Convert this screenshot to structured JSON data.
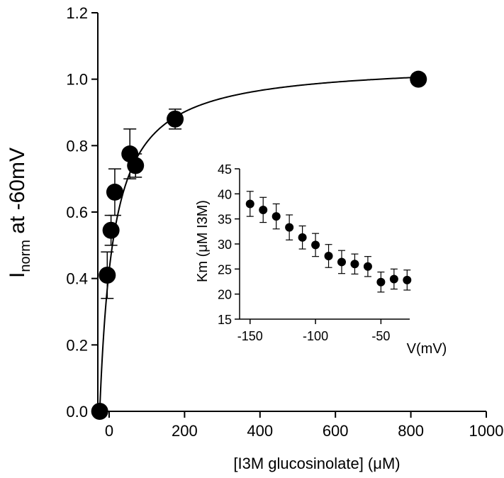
{
  "chart_data": [
    {
      "type": "scatter",
      "title": "",
      "xlabel": "[I3M glucosinolate] (μM)",
      "ylabel_main": "I",
      "ylabel_sub": "norm",
      "ylabel_rest": " at -60mV",
      "xlim": [
        -30,
        1000
      ],
      "ylim": [
        0,
        1.2
      ],
      "x_ticks": [
        0,
        200,
        400,
        600,
        800,
        1000
      ],
      "y_ticks": [
        0.0,
        0.2,
        0.4,
        0.6,
        0.8,
        1.0,
        1.2
      ],
      "y_tick_labels": [
        "0.0",
        "0.2",
        "0.4",
        "0.6",
        "0.8",
        "1.0",
        "1.2"
      ],
      "points": [
        {
          "x": -25,
          "y": 0.0,
          "err": 0.0
        },
        {
          "x": -5,
          "y": 0.41,
          "err": 0.07
        },
        {
          "x": 5,
          "y": 0.545,
          "err": 0.045
        },
        {
          "x": 15,
          "y": 0.66,
          "err": 0.07
        },
        {
          "x": 55,
          "y": 0.775,
          "err": 0.075
        },
        {
          "x": 70,
          "y": 0.74,
          "err": 0.035
        },
        {
          "x": 175,
          "y": 0.88,
          "err": 0.03
        },
        {
          "x": 820,
          "y": 1.0,
          "err": 0.0
        }
      ],
      "fit": {
        "model": "michaelis-menten",
        "km": 37,
        "x0": -25
      }
    },
    {
      "type": "scatter",
      "title": "",
      "xlabel": "V(mV)",
      "ylabel": "Km (μM I3M)",
      "xlim": [
        -158,
        -28
      ],
      "ylim": [
        15,
        45
      ],
      "x_ticks": [
        -150,
        -100,
        -50
      ],
      "y_ticks": [
        15,
        20,
        25,
        30,
        35,
        40,
        45
      ],
      "points": [
        {
          "x": -150,
          "y": 38.0,
          "err": 2.5
        },
        {
          "x": -140,
          "y": 36.8,
          "err": 2.5
        },
        {
          "x": -130,
          "y": 35.5,
          "err": 2.5
        },
        {
          "x": -120,
          "y": 33.3,
          "err": 2.5
        },
        {
          "x": -110,
          "y": 31.3,
          "err": 2.3
        },
        {
          "x": -100,
          "y": 29.8,
          "err": 2.3
        },
        {
          "x": -90,
          "y": 27.6,
          "err": 2.3
        },
        {
          "x": -80,
          "y": 26.4,
          "err": 2.3
        },
        {
          "x": -70,
          "y": 26.0,
          "err": 2.0
        },
        {
          "x": -60,
          "y": 25.5,
          "err": 2.0
        },
        {
          "x": -50,
          "y": 22.4,
          "err": 2.0
        },
        {
          "x": -40,
          "y": 23.0,
          "err": 2.0
        },
        {
          "x": -30,
          "y": 22.8,
          "err": 2.0
        }
      ]
    }
  ]
}
